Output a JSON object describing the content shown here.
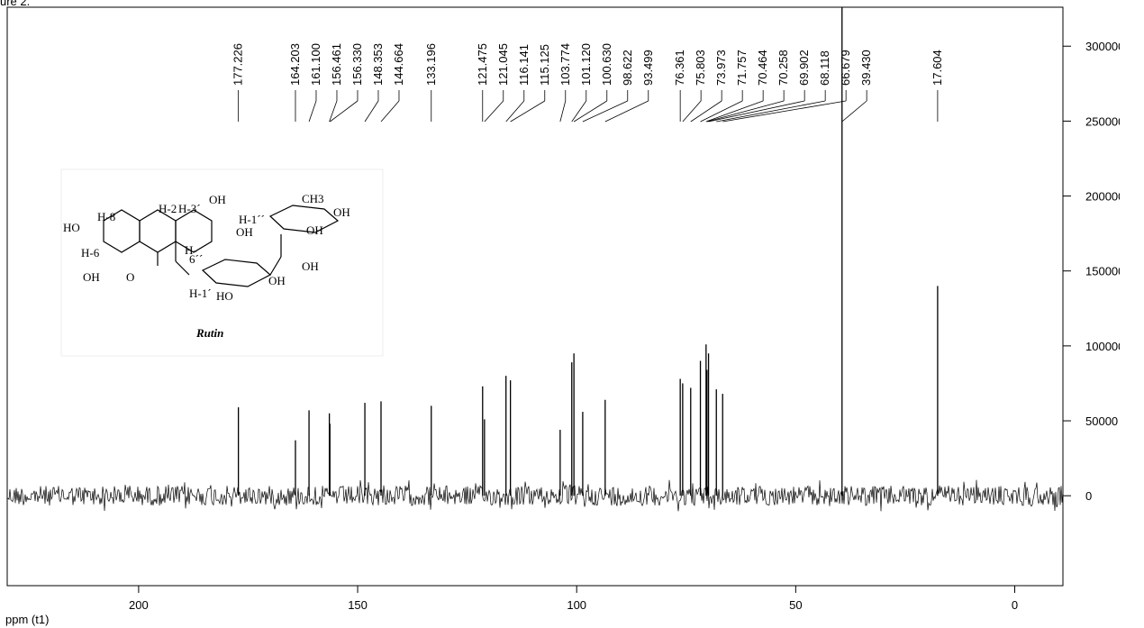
{
  "chart_data": {
    "type": "spectrum",
    "heading": "ure 2.",
    "x_axis_label": "ppm (t1)",
    "x": [
      177.226,
      164.203,
      161.1,
      156.461,
      156.33,
      148.353,
      144.664,
      133.196,
      121.475,
      121.045,
      116.141,
      115.125,
      103.774,
      101.12,
      100.63,
      98.622,
      93.499,
      76.361,
      75.803,
      73.973,
      71.757,
      70.464,
      70.258,
      69.902,
      68.118,
      66.679,
      39.43,
      17.604
    ],
    "x_labels": [
      "177.226",
      "164.203",
      "161.100",
      "156.461",
      "156.330",
      "148.353",
      "144.664",
      "133.196",
      "121.475",
      "121.045",
      "116.141",
      "115.125",
      "103.774",
      "101.120",
      "100.630",
      "98.622",
      "93.499",
      "76.361",
      "75.803",
      "73.973",
      "71.757",
      "70.464",
      "70.258",
      "69.902",
      "68.118",
      "66.679",
      "39.430",
      "17.604"
    ],
    "values": [
      59000,
      37000,
      57000,
      55000,
      48000,
      62000,
      63000,
      60000,
      73000,
      51000,
      80000,
      77000,
      44000,
      89000,
      95000,
      56000,
      64000,
      78000,
      75000,
      72000,
      90000,
      101000,
      84000,
      95000,
      71000,
      68000,
      350000,
      140000
    ],
    "color": "#000000",
    "xlim": [
      230,
      -11
    ],
    "xticks": [
      200,
      150,
      100,
      50,
      0
    ],
    "ylim": [
      -60000,
      326000
    ],
    "yticks": [
      0,
      50000,
      100000,
      150000,
      200000,
      250000,
      300000
    ],
    "inset": {
      "caption": "Rutin",
      "labels": [
        "H-3´",
        "OH",
        "H-2",
        "CH3",
        "H-8",
        "HO",
        "OH",
        "H-1´´",
        "OH",
        "OH",
        "H-",
        "6´´",
        "H-6",
        "OH",
        "O",
        "OH",
        "OH",
        "H-1´",
        "HO"
      ]
    }
  }
}
